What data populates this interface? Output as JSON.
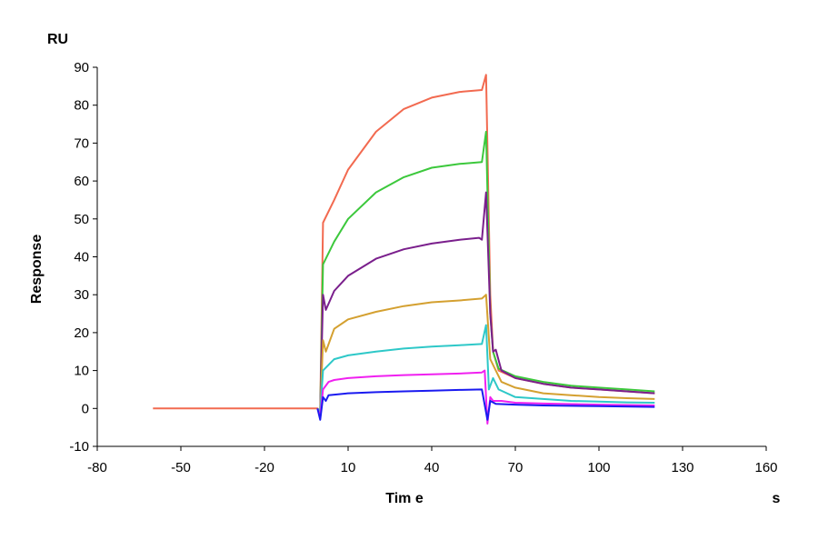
{
  "chart_data": {
    "type": "line",
    "title": "",
    "xlabel": "Tim e",
    "xunit": "s",
    "ylabel": "Response",
    "yunit": "RU",
    "xlim": [
      -80,
      160
    ],
    "ylim": [
      -10,
      90
    ],
    "xticks": [
      -80,
      -50,
      -20,
      10,
      40,
      70,
      100,
      130,
      160
    ],
    "yticks": [
      -10,
      0,
      10,
      20,
      30,
      40,
      50,
      60,
      70,
      80,
      90
    ],
    "grid": false,
    "legend": "none",
    "series": [
      {
        "color": "#f26a50",
        "points": [
          [
            -60,
            0
          ],
          [
            -1,
            0
          ],
          [
            0,
            -1
          ],
          [
            1,
            49
          ],
          [
            5,
            55
          ],
          [
            10,
            63
          ],
          [
            20,
            73
          ],
          [
            30,
            79
          ],
          [
            40,
            82
          ],
          [
            50,
            83.5
          ],
          [
            58,
            84
          ],
          [
            59.5,
            88
          ],
          [
            61,
            30
          ],
          [
            62,
            15
          ],
          [
            64,
            10
          ],
          [
            70,
            8
          ],
          [
            80,
            6.5
          ],
          [
            90,
            5.5
          ],
          [
            100,
            5
          ],
          [
            110,
            4.5
          ],
          [
            120,
            4
          ]
        ]
      },
      {
        "color": "#3cc83c",
        "points": [
          [
            -1,
            0
          ],
          [
            0,
            -1
          ],
          [
            1,
            38
          ],
          [
            5,
            44
          ],
          [
            10,
            50
          ],
          [
            20,
            57
          ],
          [
            30,
            61
          ],
          [
            40,
            63.5
          ],
          [
            50,
            64.5
          ],
          [
            58,
            65
          ],
          [
            59.5,
            73
          ],
          [
            61,
            25
          ],
          [
            62,
            15
          ],
          [
            64,
            10.5
          ],
          [
            70,
            8.5
          ],
          [
            80,
            7
          ],
          [
            90,
            6
          ],
          [
            100,
            5.5
          ],
          [
            110,
            5
          ],
          [
            120,
            4.5
          ]
        ]
      },
      {
        "color": "#7a1f8c",
        "points": [
          [
            -1,
            0
          ],
          [
            0,
            -1
          ],
          [
            1,
            30
          ],
          [
            2,
            26
          ],
          [
            5,
            31
          ],
          [
            10,
            35
          ],
          [
            20,
            39.5
          ],
          [
            30,
            42
          ],
          [
            40,
            43.5
          ],
          [
            50,
            44.5
          ],
          [
            57,
            45
          ],
          [
            58,
            44.5
          ],
          [
            59.5,
            57
          ],
          [
            61,
            25
          ],
          [
            62,
            15
          ],
          [
            63,
            15.5
          ],
          [
            65,
            10
          ],
          [
            70,
            8
          ],
          [
            80,
            6.5
          ],
          [
            90,
            5.5
          ],
          [
            100,
            5
          ],
          [
            110,
            4.5
          ],
          [
            120,
            4
          ]
        ]
      },
      {
        "color": "#d4a030",
        "points": [
          [
            -1,
            0
          ],
          [
            0,
            -1
          ],
          [
            1,
            18
          ],
          [
            2,
            15
          ],
          [
            5,
            21
          ],
          [
            10,
            23.5
          ],
          [
            20,
            25.5
          ],
          [
            30,
            27
          ],
          [
            40,
            28
          ],
          [
            50,
            28.5
          ],
          [
            58,
            29
          ],
          [
            59.5,
            30
          ],
          [
            61,
            13
          ],
          [
            63,
            10
          ],
          [
            65,
            7
          ],
          [
            70,
            5.5
          ],
          [
            80,
            4
          ],
          [
            90,
            3.5
          ],
          [
            100,
            3
          ],
          [
            110,
            2.7
          ],
          [
            120,
            2.5
          ]
        ]
      },
      {
        "color": "#2ec8c8",
        "points": [
          [
            -1,
            0
          ],
          [
            0,
            -1
          ],
          [
            1,
            10
          ],
          [
            5,
            13
          ],
          [
            10,
            14
          ],
          [
            20,
            15
          ],
          [
            30,
            15.8
          ],
          [
            40,
            16.3
          ],
          [
            50,
            16.7
          ],
          [
            58,
            17
          ],
          [
            59.5,
            22
          ],
          [
            60.5,
            5
          ],
          [
            61,
            6
          ],
          [
            62,
            8
          ],
          [
            64,
            5
          ],
          [
            70,
            3
          ],
          [
            80,
            2.5
          ],
          [
            90,
            2
          ],
          [
            100,
            1.8
          ],
          [
            110,
            1.6
          ],
          [
            120,
            1.5
          ]
        ]
      },
      {
        "color": "#f020f0",
        "points": [
          [
            -1,
            0
          ],
          [
            0,
            -2
          ],
          [
            1,
            5
          ],
          [
            3,
            7
          ],
          [
            5,
            7.5
          ],
          [
            10,
            8
          ],
          [
            20,
            8.5
          ],
          [
            30,
            8.8
          ],
          [
            40,
            9
          ],
          [
            50,
            9.2
          ],
          [
            58,
            9.5
          ],
          [
            59,
            10
          ],
          [
            60,
            -4
          ],
          [
            61,
            3
          ],
          [
            62,
            2
          ],
          [
            65,
            2
          ],
          [
            70,
            1.5
          ],
          [
            80,
            1.3
          ],
          [
            100,
            1
          ],
          [
            120,
            0.8
          ]
        ]
      },
      {
        "color": "#1a1af0",
        "points": [
          [
            -1,
            0
          ],
          [
            0,
            -3
          ],
          [
            1,
            3
          ],
          [
            2,
            2
          ],
          [
            3,
            3.5
          ],
          [
            10,
            4
          ],
          [
            20,
            4.3
          ],
          [
            30,
            4.5
          ],
          [
            40,
            4.7
          ],
          [
            50,
            4.9
          ],
          [
            58,
            5
          ],
          [
            60,
            -3
          ],
          [
            61,
            2
          ],
          [
            63,
            1.2
          ],
          [
            70,
            1
          ],
          [
            80,
            0.8
          ],
          [
            100,
            0.6
          ],
          [
            120,
            0.4
          ]
        ]
      }
    ]
  }
}
